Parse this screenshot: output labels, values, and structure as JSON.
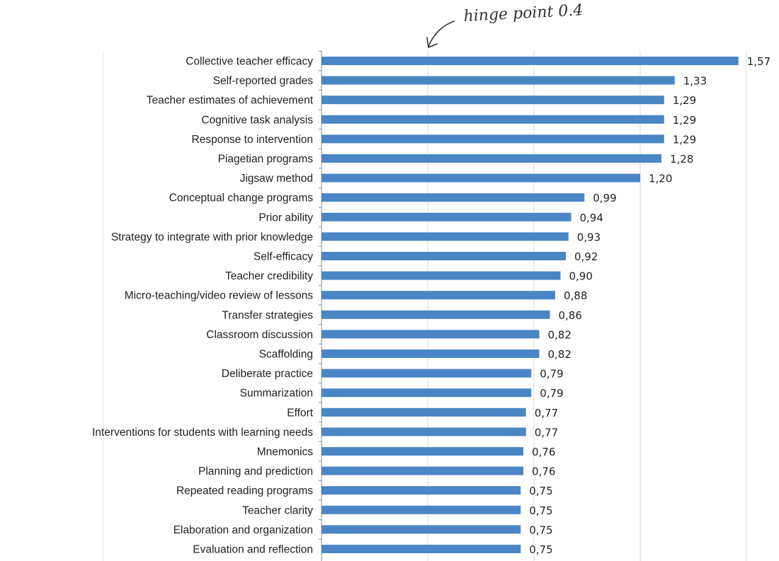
{
  "chart_data": {
    "type": "bar",
    "orientation": "horizontal",
    "categories": [
      "Collective teacher efficacy",
      "Self-reported grades",
      "Teacher estimates of achievement",
      "Cognitive task analysis",
      "Response to intervention",
      "Piagetian programs",
      "Jigsaw method",
      "Conceptual change programs",
      "Prior ability",
      "Strategy to integrate with prior knowledge",
      "Self-efficacy",
      "Teacher credibility",
      "Micro-teaching/video review of lessons",
      "Transfer strategies",
      "Classroom discussion",
      "Scaffolding",
      "Deliberate practice",
      "Summarization",
      "Effort",
      "Interventions for students with learning needs",
      "Mnemonics",
      "Planning and prediction",
      "Repeated reading programs",
      "Teacher clarity",
      "Elaboration and organization",
      "Evaluation and reflection"
    ],
    "values": [
      1.57,
      1.33,
      1.29,
      1.29,
      1.29,
      1.28,
      1.2,
      0.99,
      0.94,
      0.93,
      0.92,
      0.9,
      0.88,
      0.86,
      0.82,
      0.82,
      0.79,
      0.79,
      0.77,
      0.77,
      0.76,
      0.76,
      0.75,
      0.75,
      0.75,
      0.75
    ],
    "value_labels": [
      "1,57",
      "1,33",
      "1,29",
      "1,29",
      "1,29",
      "1,28",
      "1,20",
      "0,99",
      "0,94",
      "0,93",
      "0,92",
      "0,90",
      "0,88",
      "0,86",
      "0,82",
      "0,82",
      "0,79",
      "0,79",
      "0,77",
      "0,77",
      "0,76",
      "0,76",
      "0,75",
      "0,75",
      "0,75",
      "0,75"
    ],
    "xlim": [
      0,
      1.6
    ],
    "grid_x": [
      0.4,
      0.8,
      1.2,
      1.6
    ],
    "grid": true,
    "title": "",
    "xlabel": "",
    "ylabel": "",
    "bar_color": "#4a86c5",
    "annotation": {
      "text": "hinge point 0.4",
      "points_to_x": 0.4
    }
  }
}
